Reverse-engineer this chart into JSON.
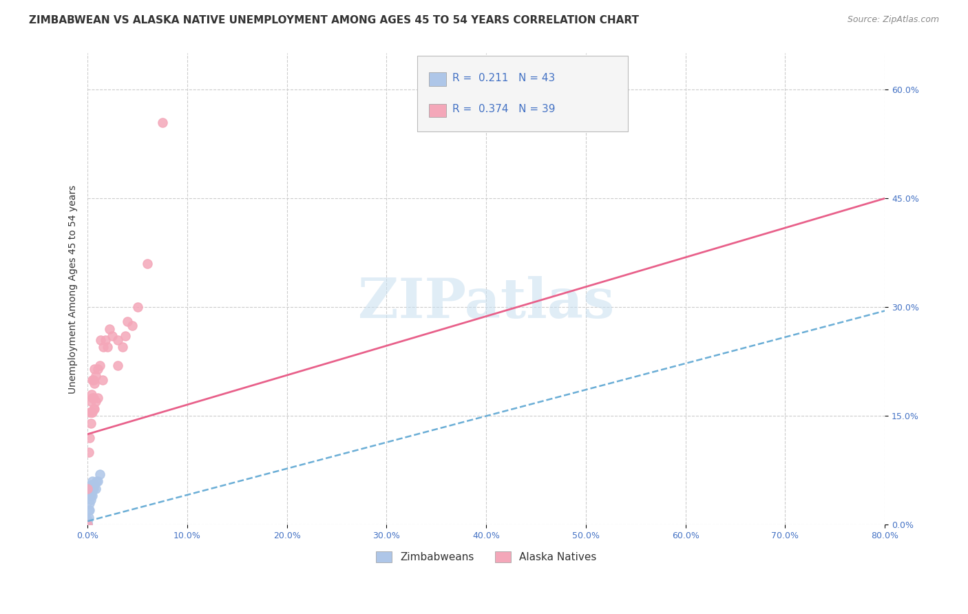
{
  "title": "ZIMBABWEAN VS ALASKA NATIVE UNEMPLOYMENT AMONG AGES 45 TO 54 YEARS CORRELATION CHART",
  "source": "Source: ZipAtlas.com",
  "ylabel": "Unemployment Among Ages 45 to 54 years",
  "xlim": [
    0.0,
    0.8
  ],
  "ylim": [
    0.0,
    0.65
  ],
  "watermark": "ZIPatlas",
  "zimbabwean_color": "#aec6e8",
  "alaska_native_color": "#f4a7b9",
  "zimbabwean_line_color": "#6baed6",
  "alaska_native_line_color": "#e8608a",
  "background_color": "#ffffff",
  "grid_color": "#cccccc",
  "title_fontsize": 11,
  "axis_label_fontsize": 10,
  "tick_fontsize": 9,
  "legend_fontsize": 11,
  "zim_x": [
    0.0,
    0.0,
    0.0,
    0.0,
    0.0,
    0.0,
    0.0,
    0.0,
    0.0,
    0.0,
    0.0,
    0.0,
    0.0,
    0.0,
    0.0,
    0.0,
    0.0,
    0.0,
    0.0,
    0.0,
    0.0,
    0.0,
    0.0,
    0.0,
    0.0,
    0.001,
    0.001,
    0.002,
    0.002,
    0.003,
    0.003,
    0.003,
    0.004,
    0.004,
    0.005,
    0.005,
    0.005,
    0.006,
    0.007,
    0.008,
    0.009,
    0.01,
    0.012
  ],
  "zim_y": [
    0.0,
    0.0,
    0.0,
    0.0,
    0.0,
    0.0,
    0.0,
    0.0,
    0.0,
    0.0,
    0.0,
    0.0,
    0.0,
    0.0,
    0.0,
    0.0,
    0.0,
    0.0,
    0.0,
    0.0,
    0.0,
    0.0,
    0.0,
    0.005,
    0.007,
    0.01,
    0.02,
    0.02,
    0.03,
    0.035,
    0.04,
    0.05,
    0.045,
    0.055,
    0.04,
    0.05,
    0.06,
    0.05,
    0.055,
    0.05,
    0.06,
    0.06,
    0.07
  ],
  "ak_x": [
    0.0,
    0.0,
    0.001,
    0.002,
    0.002,
    0.003,
    0.003,
    0.004,
    0.004,
    0.005,
    0.005,
    0.005,
    0.006,
    0.006,
    0.006,
    0.007,
    0.007,
    0.007,
    0.008,
    0.008,
    0.01,
    0.01,
    0.012,
    0.013,
    0.015,
    0.016,
    0.018,
    0.02,
    0.022,
    0.025,
    0.03,
    0.03,
    0.035,
    0.038,
    0.04,
    0.045,
    0.05,
    0.06,
    0.075
  ],
  "ak_y": [
    0.0,
    0.05,
    0.1,
    0.12,
    0.155,
    0.14,
    0.17,
    0.155,
    0.18,
    0.155,
    0.175,
    0.2,
    0.16,
    0.175,
    0.2,
    0.16,
    0.195,
    0.215,
    0.17,
    0.205,
    0.175,
    0.215,
    0.22,
    0.255,
    0.2,
    0.245,
    0.255,
    0.245,
    0.27,
    0.26,
    0.22,
    0.255,
    0.245,
    0.26,
    0.28,
    0.275,
    0.3,
    0.36,
    0.555
  ],
  "zim_line_x0": 0.0,
  "zim_line_x1": 0.8,
  "zim_line_y0": 0.005,
  "zim_line_y1": 0.295,
  "ak_line_x0": 0.0,
  "ak_line_x1": 0.8,
  "ak_line_y0": 0.125,
  "ak_line_y1": 0.45
}
